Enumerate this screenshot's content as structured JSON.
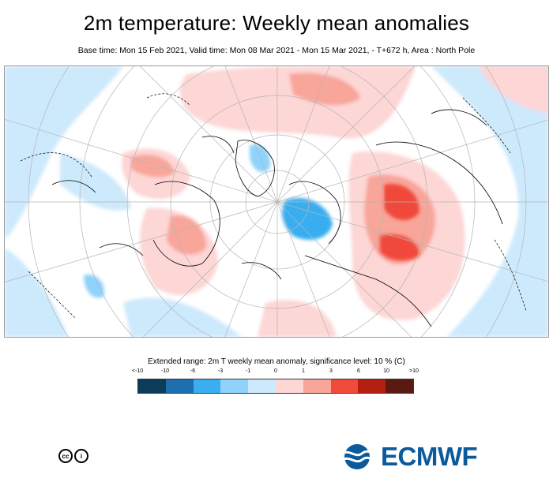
{
  "header": {
    "title": "2m temperature: Weekly mean anomalies",
    "subtitle": "Base time: Mon 15 Feb 2021, Valid time: Mon 08 Mar 2021 - Mon 15 Mar 2021, - T+672 h, Area : North Pole"
  },
  "map": {
    "area": "North Pole",
    "projection": "polar stereographic"
  },
  "legend": {
    "title": "Extended range: 2m T weekly mean anomaly, significance level: 10 % (C)",
    "ticks": [
      "<-10",
      "-10",
      "-6",
      "-3",
      "-1",
      "0",
      "1",
      "3",
      "6",
      "10",
      ">10"
    ],
    "colors": [
      "#0d3b5a",
      "#1f6fae",
      "#39aef0",
      "#8fd2fb",
      "#cde9fc",
      "#fdd6d6",
      "#f8a59a",
      "#f04a3a",
      "#b41f12",
      "#5a1a12"
    ]
  },
  "footer": {
    "license_icons": [
      "creative-commons-icon",
      "attribution-icon"
    ],
    "license_text": [
      "cc",
      "i"
    ],
    "logo_text": "ECMWF",
    "logo_color": "#0a5a9c"
  }
}
